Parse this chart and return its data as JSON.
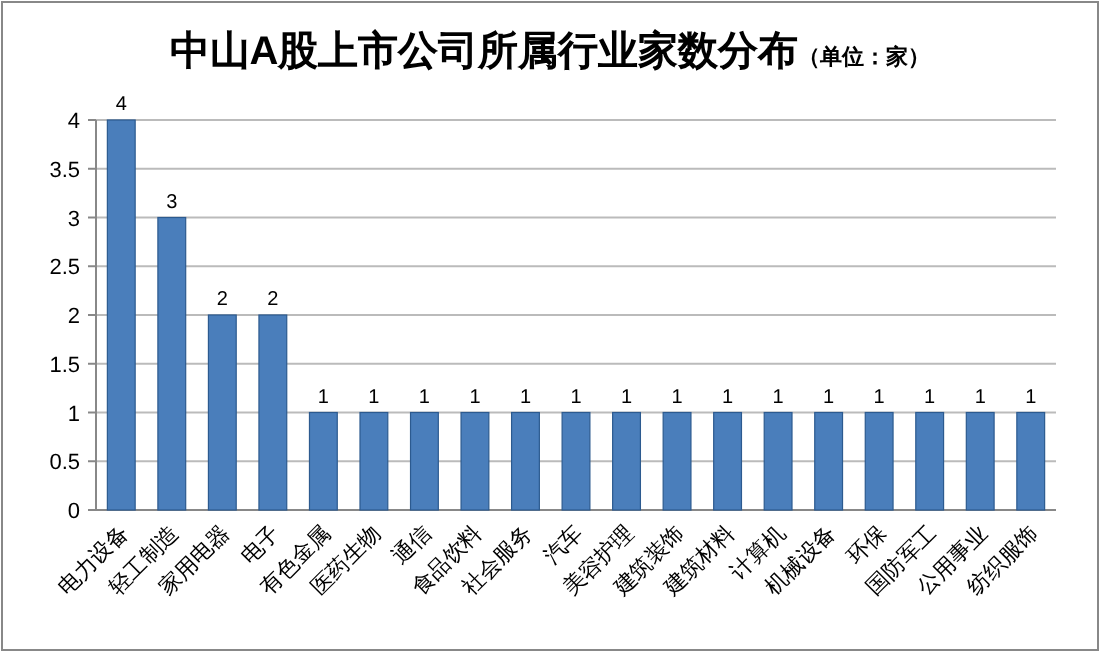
{
  "chart_data": {
    "type": "bar",
    "title": "中山A股上市公司所属行业家数分布",
    "subtitle": "（单位：家）",
    "categories": [
      "电力设备",
      "轻工制造",
      "家用电器",
      "电子",
      "有色金属",
      "医药生物",
      "通信",
      "食品饮料",
      "社会服务",
      "汽车",
      "美容护理",
      "建筑装饰",
      "建筑材料",
      "计算机",
      "机械设备",
      "环保",
      "国防军工",
      "公用事业",
      "纺织服饰"
    ],
    "values": [
      4,
      3,
      2,
      2,
      1,
      1,
      1,
      1,
      1,
      1,
      1,
      1,
      1,
      1,
      1,
      1,
      1,
      1,
      1
    ],
    "color": "#4a7ebb",
    "ylim": [
      0,
      4
    ],
    "yticks": [
      0,
      0.5,
      1,
      1.5,
      2,
      2.5,
      3,
      3.5,
      4
    ],
    "grid": "y",
    "data_labels": true
  }
}
